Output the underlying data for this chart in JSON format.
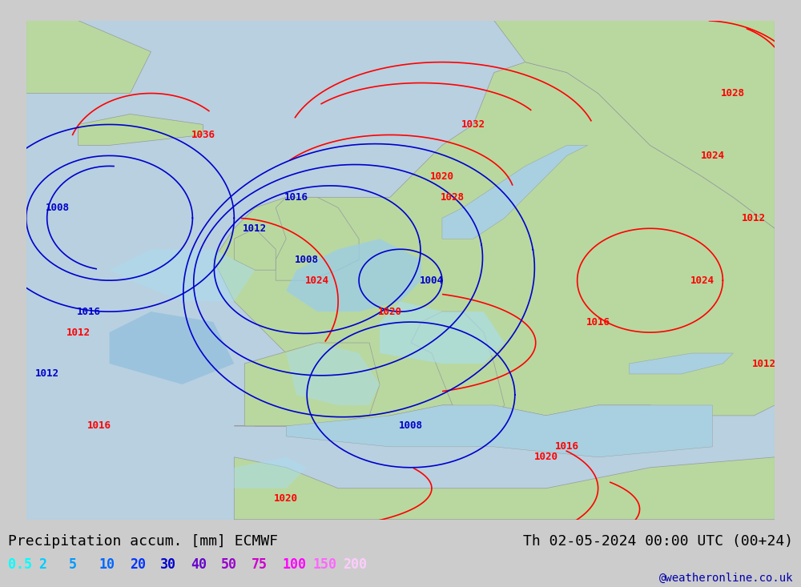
{
  "title_left": "Precipitation accum. [mm] ECMWF",
  "title_right": "Th 02-05-2024 00:00 UTC (00+24)",
  "watermark": "@weatheronline.co.uk",
  "legend_values": [
    "0.5",
    "2",
    "5",
    "10",
    "20",
    "30",
    "40",
    "50",
    "75",
    "100",
    "150",
    "200"
  ],
  "legend_colors": [
    "#00ffff",
    "#00ccff",
    "#0099ff",
    "#0066ff",
    "#0033ff",
    "#0000cc",
    "#6600cc",
    "#9900cc",
    "#cc00cc",
    "#ff00ff",
    "#ff66ff",
    "#ffccff"
  ],
  "bg_color": "#cccccc",
  "land_color": "#b8d8a0",
  "ocean_color": "#b8d0e0",
  "med_color": "#a8d0e0",
  "precip_light": "#aaddee",
  "precip_mid": "#88bbdd",
  "red": "#ff0000",
  "blue": "#0000cc",
  "font_size_title": 13,
  "font_size_legend": 12,
  "font_size_isobar": 9
}
